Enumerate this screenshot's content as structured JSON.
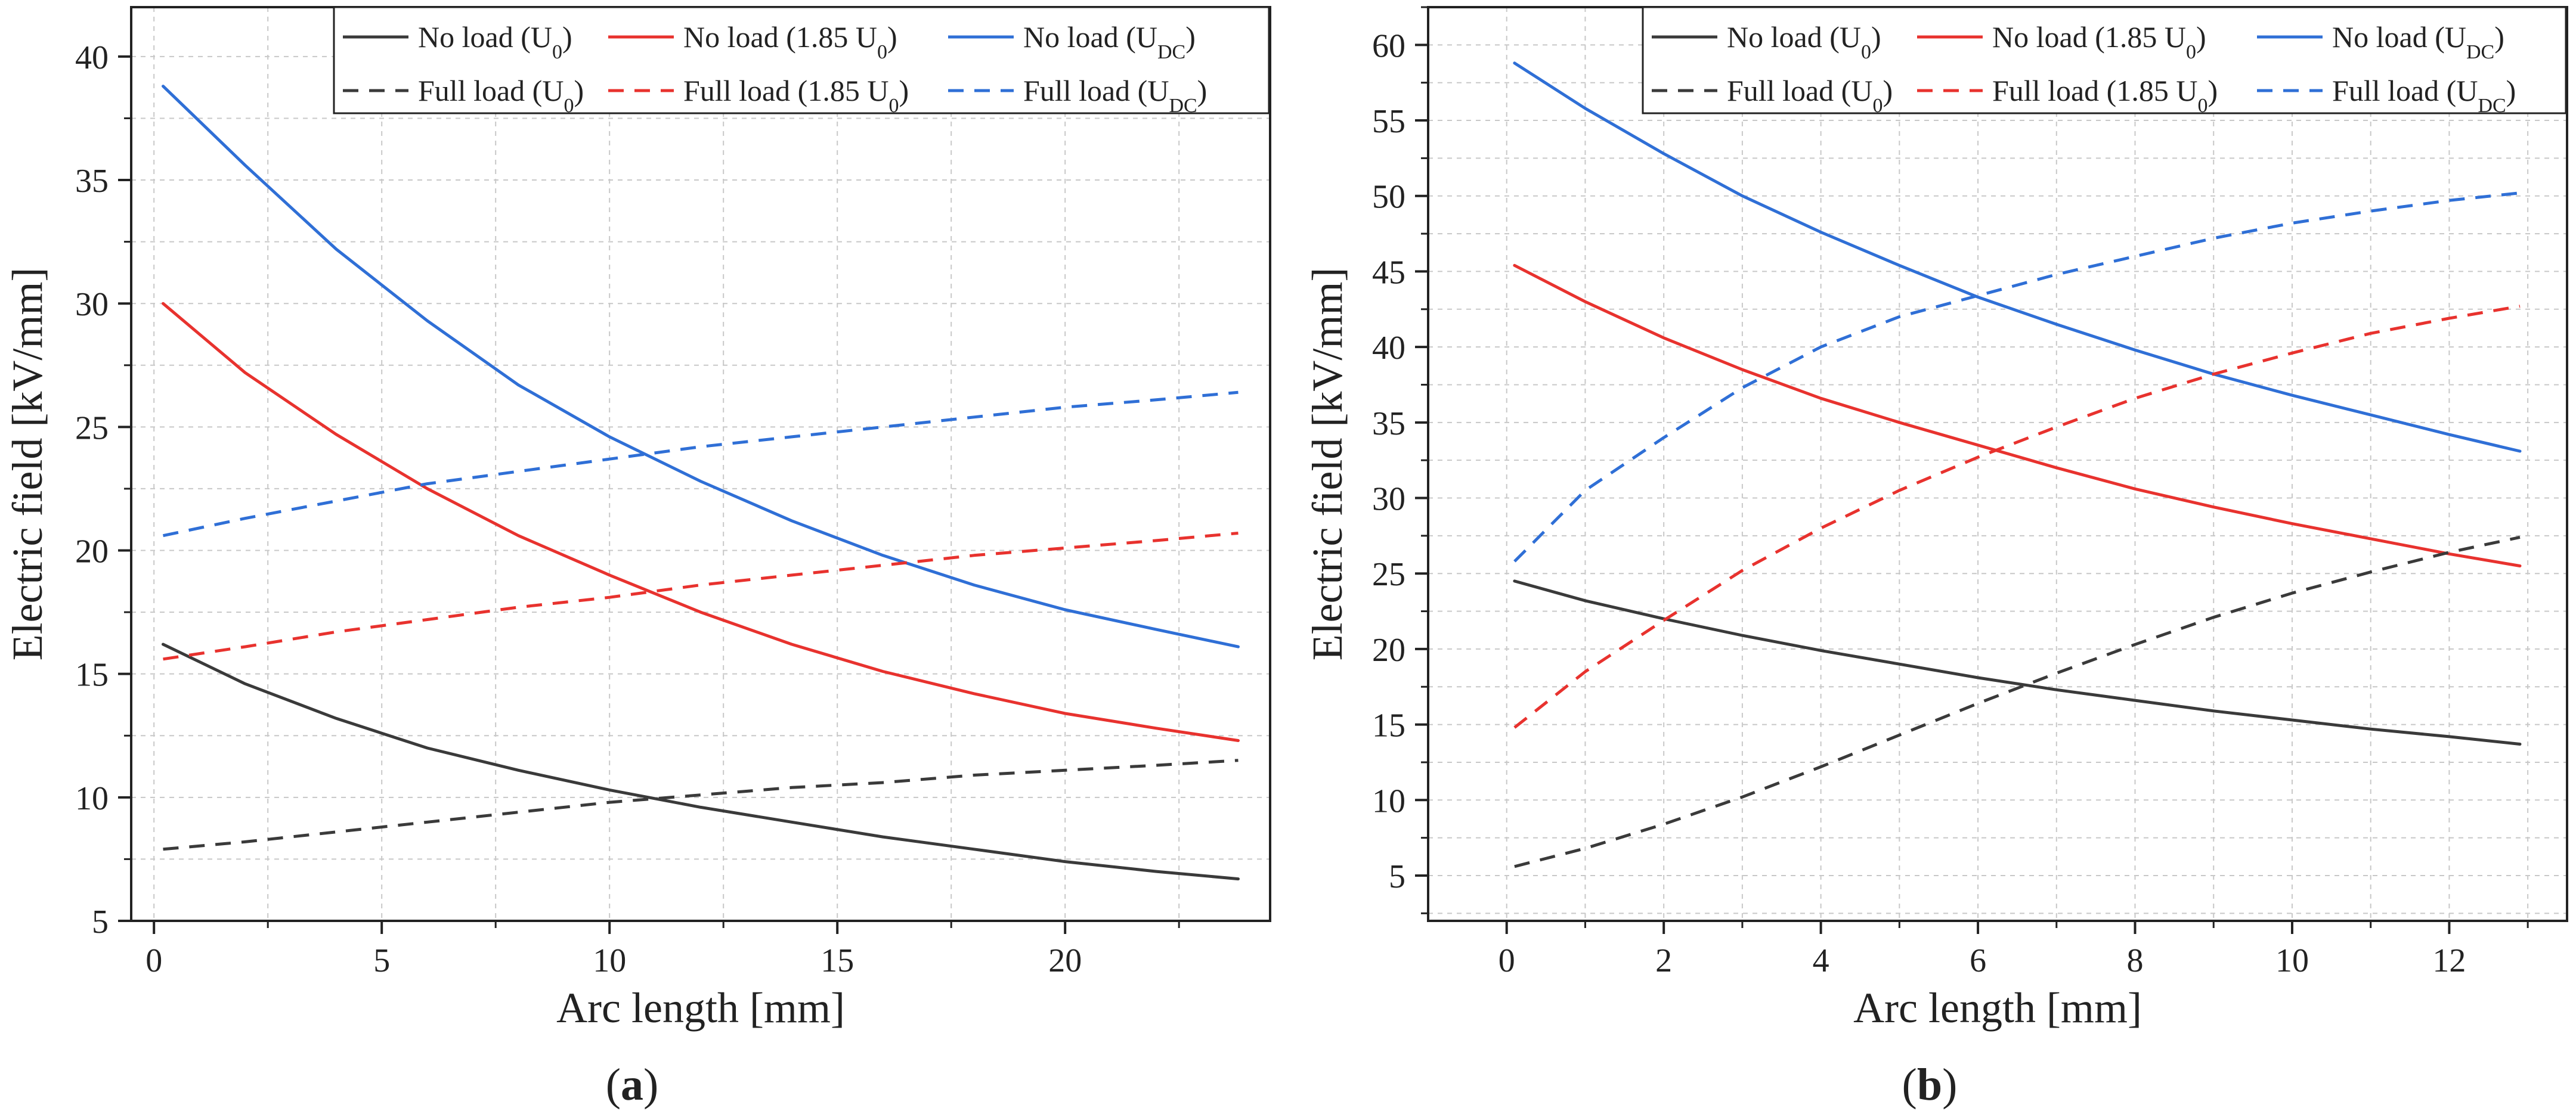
{
  "figure": {
    "colors": {
      "black": "#3a3a3a",
      "red": "#e8322e",
      "blue": "#2f6fd6",
      "grid": "#c8c8c8",
      "axis": "#222222"
    }
  },
  "chart_data": [
    {
      "type": "line",
      "panel_label": "a",
      "xlabel": "Arc length [mm]",
      "ylabel": "Electric field [kV/mm]",
      "xlim": [
        -0.5,
        24.5
      ],
      "ylim": [
        5,
        42
      ],
      "xticks": [
        0,
        5,
        10,
        15,
        20
      ],
      "yticks": [
        5,
        10,
        15,
        20,
        25,
        30,
        35,
        40
      ],
      "grid": true,
      "legend_position": "top-right",
      "series": [
        {
          "name": "No load",
          "subscript": "0",
          "coef": "",
          "style": "solid",
          "color": "black",
          "x": [
            0.2,
            2,
            4,
            6,
            8,
            10,
            12,
            14,
            16,
            18,
            20,
            22,
            23.8
          ],
          "y": [
            16.2,
            14.6,
            13.2,
            12.0,
            11.1,
            10.3,
            9.6,
            9.0,
            8.4,
            7.9,
            7.4,
            7.0,
            6.7
          ]
        },
        {
          "name": "No load",
          "subscript": "0",
          "coef": "1.85 ",
          "style": "solid",
          "color": "red",
          "x": [
            0.2,
            2,
            4,
            6,
            8,
            10,
            12,
            14,
            16,
            18,
            20,
            22,
            23.8
          ],
          "y": [
            30.0,
            27.2,
            24.7,
            22.5,
            20.6,
            19.0,
            17.5,
            16.2,
            15.1,
            14.2,
            13.4,
            12.8,
            12.3
          ]
        },
        {
          "name": "No load",
          "subscript": "DC",
          "coef": "",
          "style": "solid",
          "color": "blue",
          "x": [
            0.2,
            2,
            4,
            6,
            8,
            10,
            12,
            14,
            16,
            18,
            20,
            22,
            23.8
          ],
          "y": [
            38.8,
            35.6,
            32.2,
            29.3,
            26.7,
            24.6,
            22.8,
            21.2,
            19.8,
            18.6,
            17.6,
            16.8,
            16.1
          ]
        },
        {
          "name": "Full load",
          "subscript": "0",
          "coef": "",
          "style": "dashed",
          "color": "black",
          "x": [
            0.2,
            2,
            4,
            6,
            8,
            10,
            12,
            14,
            16,
            18,
            20,
            22,
            23.8
          ],
          "y": [
            7.9,
            8.2,
            8.6,
            9.0,
            9.4,
            9.8,
            10.1,
            10.4,
            10.6,
            10.9,
            11.1,
            11.3,
            11.5
          ]
        },
        {
          "name": "Full load",
          "subscript": "0",
          "coef": "1.85 ",
          "style": "dashed",
          "color": "red",
          "x": [
            0.2,
            2,
            4,
            6,
            8,
            10,
            12,
            14,
            16,
            18,
            20,
            22,
            23.8
          ],
          "y": [
            15.6,
            16.1,
            16.7,
            17.2,
            17.7,
            18.1,
            18.6,
            19.0,
            19.4,
            19.8,
            20.1,
            20.4,
            20.7
          ]
        },
        {
          "name": "Full load",
          "subscript": "DC",
          "coef": "",
          "style": "dashed",
          "color": "blue",
          "x": [
            0.2,
            2,
            4,
            6,
            8,
            10,
            12,
            14,
            16,
            18,
            20,
            22,
            23.8
          ],
          "y": [
            20.6,
            21.3,
            22.0,
            22.7,
            23.2,
            23.7,
            24.2,
            24.6,
            25.0,
            25.4,
            25.8,
            26.1,
            26.4
          ]
        }
      ]
    },
    {
      "type": "line",
      "panel_label": "b",
      "xlabel": "Arc length [mm]",
      "ylabel": "Electric field [kV/mm]",
      "xlim": [
        -1,
        13.5
      ],
      "ylim": [
        2,
        62.5
      ],
      "xticks": [
        0,
        2,
        4,
        6,
        8,
        10,
        12
      ],
      "yticks": [
        5,
        10,
        15,
        20,
        25,
        30,
        35,
        40,
        45,
        50,
        55,
        60
      ],
      "grid": true,
      "legend_position": "top-right",
      "series": [
        {
          "name": "No load",
          "subscript": "0",
          "coef": "",
          "style": "solid",
          "color": "black",
          "x": [
            0.1,
            1,
            2,
            3,
            4,
            5,
            6,
            7,
            8,
            9,
            10,
            11,
            12,
            12.9
          ],
          "y": [
            24.5,
            23.2,
            22.0,
            20.9,
            19.9,
            19.0,
            18.1,
            17.3,
            16.6,
            15.9,
            15.3,
            14.7,
            14.2,
            13.7
          ]
        },
        {
          "name": "No load",
          "subscript": "0",
          "coef": "1.85 ",
          "style": "solid",
          "color": "red",
          "x": [
            0.1,
            1,
            2,
            3,
            4,
            5,
            6,
            7,
            8,
            9,
            10,
            11,
            12,
            12.9
          ],
          "y": [
            45.4,
            43.0,
            40.6,
            38.5,
            36.6,
            35.0,
            33.5,
            32.0,
            30.6,
            29.4,
            28.3,
            27.3,
            26.3,
            25.5
          ]
        },
        {
          "name": "No load",
          "subscript": "DC",
          "coef": "",
          "style": "solid",
          "color": "blue",
          "x": [
            0.1,
            1,
            2,
            3,
            4,
            5,
            6,
            7,
            8,
            9,
            10,
            11,
            12,
            12.9
          ],
          "y": [
            58.8,
            55.8,
            52.8,
            50.0,
            47.6,
            45.4,
            43.3,
            41.5,
            39.8,
            38.2,
            36.8,
            35.5,
            34.2,
            33.1
          ]
        },
        {
          "name": "Full load",
          "subscript": "0",
          "coef": "",
          "style": "dashed",
          "color": "black",
          "x": [
            0.1,
            1,
            2,
            3,
            4,
            5,
            6,
            7,
            8,
            9,
            10,
            11,
            12,
            12.9
          ],
          "y": [
            5.6,
            6.8,
            8.4,
            10.2,
            12.2,
            14.3,
            16.4,
            18.4,
            20.3,
            22.1,
            23.7,
            25.1,
            26.4,
            27.4
          ]
        },
        {
          "name": "Full load",
          "subscript": "0",
          "coef": "1.85 ",
          "style": "dashed",
          "color": "red",
          "x": [
            0.1,
            1,
            2,
            3,
            4,
            5,
            6,
            7,
            8,
            9,
            10,
            11,
            12,
            12.9
          ],
          "y": [
            14.8,
            18.5,
            21.9,
            25.2,
            28.0,
            30.5,
            32.7,
            34.7,
            36.6,
            38.2,
            39.6,
            40.9,
            41.9,
            42.7
          ]
        },
        {
          "name": "Full load",
          "subscript": "DC",
          "coef": "",
          "style": "dashed",
          "color": "blue",
          "x": [
            0.1,
            1,
            2,
            3,
            4,
            5,
            6,
            7,
            8,
            9,
            10,
            11,
            12,
            12.9
          ],
          "y": [
            25.8,
            30.5,
            34.0,
            37.3,
            40.0,
            42.0,
            43.4,
            44.8,
            46.0,
            47.2,
            48.2,
            49.0,
            49.7,
            50.2
          ]
        }
      ]
    }
  ]
}
